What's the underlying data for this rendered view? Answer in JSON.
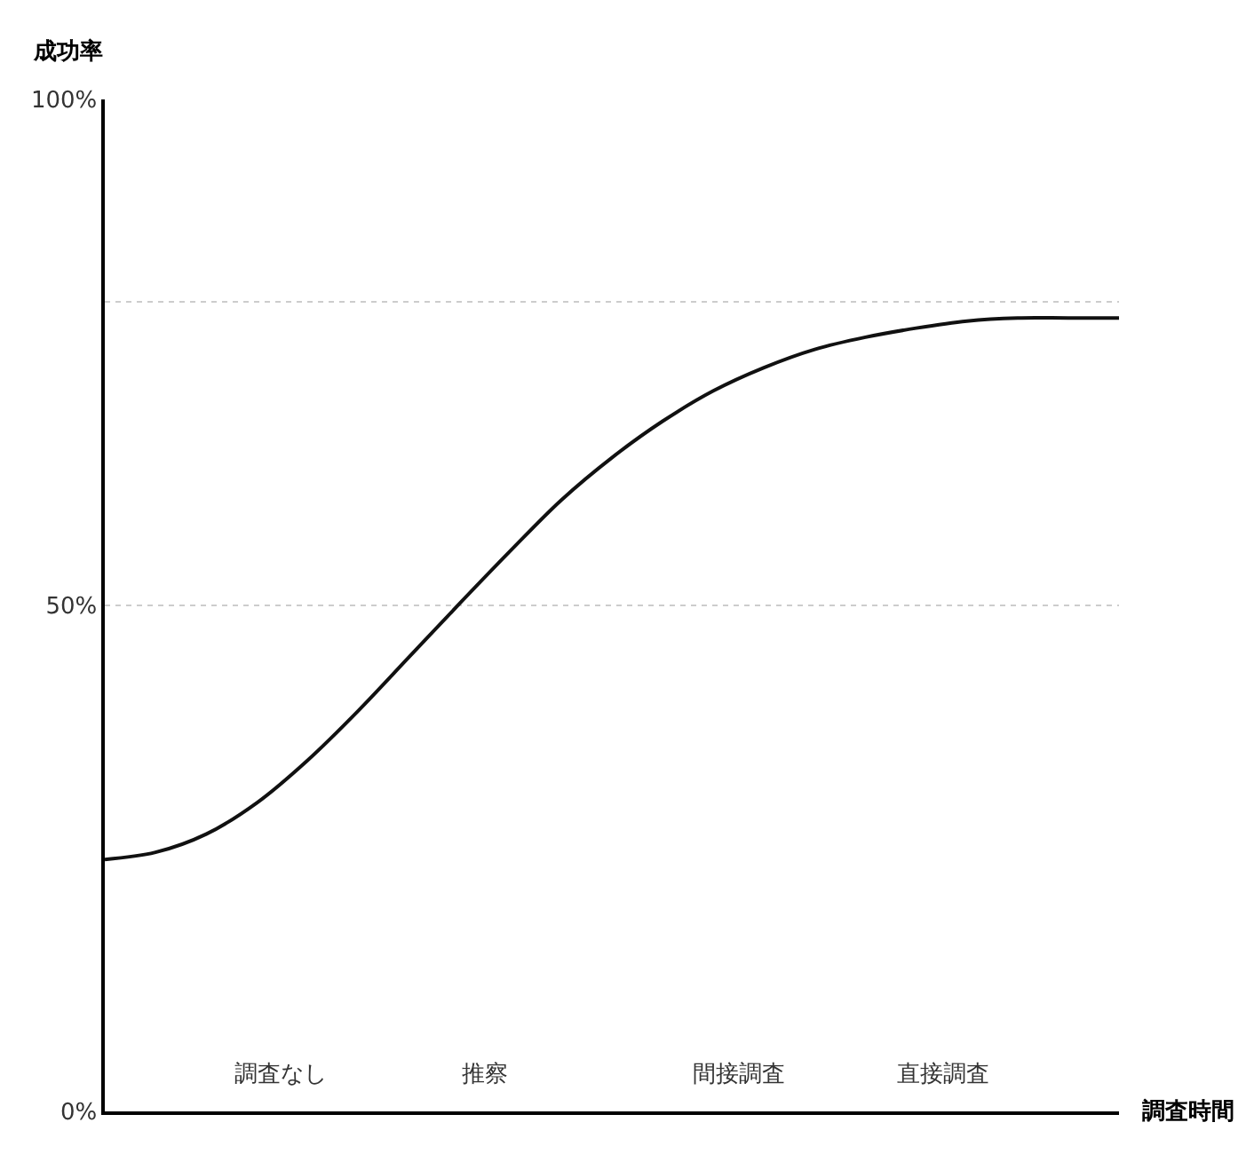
{
  "chart_data": {
    "type": "line",
    "xlabel": "調査時間",
    "ylabel": "成功率",
    "categories": [
      null,
      null,
      null,
      null,
      null,
      null,
      null,
      null,
      null,
      null,
      null,
      null,
      null,
      null,
      null,
      null,
      null,
      null,
      null,
      null,
      null
    ],
    "series": [
      {
        "color": "#111111",
        "values": [
          24.9,
          25.6,
          27.4,
          30.5,
          34.7,
          39.6,
          44.9,
          50.2,
          55.4,
          60.4,
          64.6,
          68.2,
          71.2,
          73.5,
          75.3,
          76.5,
          77.4,
          78.1,
          78.4,
          78.4,
          78.4
        ]
      }
    ],
    "ylim": [
      0,
      100
    ],
    "yticks": [
      {
        "value": 0,
        "label": "0%"
      },
      {
        "value": 50,
        "label": "50%"
      },
      {
        "value": 80,
        "label": null
      },
      {
        "value": 100,
        "label": "100%"
      }
    ],
    "annotations": [
      "調査なし",
      "推察",
      "間接調査",
      "直接調査"
    ],
    "grid": "y",
    "marker": "none",
    "line_style": "solid"
  }
}
